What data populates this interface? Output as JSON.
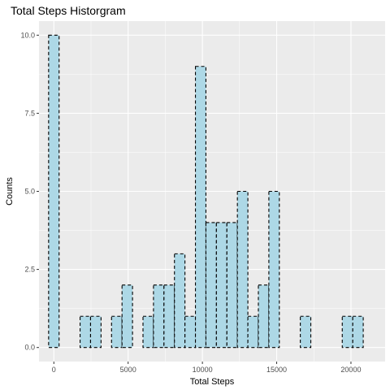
{
  "chart_data": {
    "type": "bar",
    "title": "Total Steps Historgram",
    "xlabel": "Total Steps",
    "ylabel": "Counts",
    "xlim": [
      -1000,
      22300
    ],
    "ylim": [
      -0.45,
      10.45
    ],
    "x_ticks": [
      0,
      5000,
      10000,
      15000,
      20000
    ],
    "x_tick_labels": [
      "0",
      "5000",
      "10000",
      "15000",
      "20000"
    ],
    "y_ticks": [
      0,
      2.5,
      5,
      7.5,
      10
    ],
    "y_tick_labels": [
      "0.0",
      "2.5",
      "5.0",
      "7.5",
      "10.0"
    ],
    "grid": true,
    "bin_width": 706,
    "bin_centers": [
      0,
      706,
      1412,
      2118,
      2824,
      3530,
      4236,
      4942,
      5648,
      6354,
      7060,
      7766,
      8472,
      9178,
      9884,
      10590,
      11296,
      12002,
      12708,
      13414,
      14120,
      14826,
      15532,
      16238,
      16944,
      17650,
      18356,
      19062,
      19768,
      20474,
      21180
    ],
    "values": [
      10,
      0,
      0,
      1,
      1,
      0,
      1,
      2,
      0,
      1,
      2,
      2,
      3,
      1,
      9,
      4,
      4,
      4,
      5,
      1,
      2,
      5,
      0,
      0,
      1,
      0,
      0,
      0,
      1,
      1,
      0
    ],
    "bar_fill": "#add8e6",
    "panel_background": "#ebebeb"
  }
}
